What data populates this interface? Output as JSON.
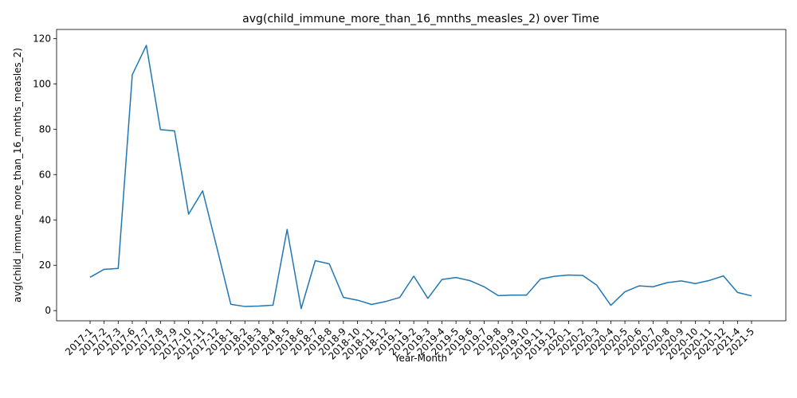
{
  "chart_data": {
    "type": "line",
    "title": "avg(child_immune_more_than_16_mnths_measles_2) over Time",
    "xlabel": "Year-Month",
    "ylabel": "avg(child_immune_more_than_16_mnths_measles_2)",
    "ylim": [
      -4.5,
      124
    ],
    "yticks": [
      0,
      20,
      40,
      60,
      80,
      100,
      120
    ],
    "grid": false,
    "line_color": "#1f77b4",
    "categories": [
      "2017-1",
      "2017-2",
      "2017-3",
      "2017-6",
      "2017-7",
      "2017-8",
      "2017-9",
      "2017-10",
      "2017-11",
      "2017-12",
      "2018-1",
      "2018-2",
      "2018-3",
      "2018-4",
      "2018-5",
      "2018-6",
      "2018-7",
      "2018-8",
      "2018-9",
      "2018-10",
      "2018-11",
      "2018-12",
      "2019-1",
      "2019-2",
      "2019-3",
      "2019-4",
      "2019-5",
      "2019-6",
      "2019-7",
      "2019-8",
      "2019-9",
      "2019-10",
      "2019-11",
      "2019-12",
      "2020-1",
      "2020-2",
      "2020-3",
      "2020-4",
      "2020-5",
      "2020-6",
      "2020-7",
      "2020-8",
      "2020-9",
      "2020-10",
      "2020-11",
      "2020-12",
      "2021-4",
      "2021-5"
    ],
    "series": [
      {
        "values": [
          14.7,
          18.2,
          18.6,
          104.0,
          117.0,
          79.8,
          79.3,
          42.5,
          52.8,
          28.0,
          2.8,
          1.8,
          2.0,
          2.4,
          35.8,
          0.9,
          22.0,
          20.6,
          5.8,
          4.6,
          2.7,
          4.0,
          5.8,
          15.2,
          5.4,
          13.7,
          14.6,
          13.2,
          10.5,
          6.6,
          6.8,
          6.8,
          13.9,
          15.1,
          15.7,
          15.5,
          11.2,
          2.3,
          8.3,
          10.9,
          10.5,
          12.3,
          13.1,
          11.9,
          13.3,
          15.3,
          8.0,
          6.5
        ]
      }
    ]
  }
}
